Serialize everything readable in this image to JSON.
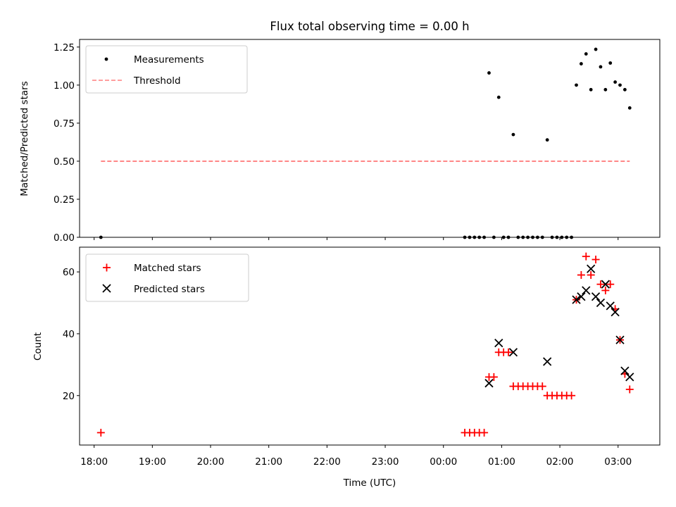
{
  "figure": {
    "title": "Flux total observing time = 0.00 h"
  },
  "chart_data": [
    {
      "type": "scatter",
      "ylabel": "Matched/Predicted stars",
      "xlabel": "",
      "xlim": [
        "17:45",
        "03:43"
      ],
      "ylim": [
        0,
        1.3
      ],
      "yticks": [
        0.0,
        0.25,
        0.5,
        0.75,
        1.0,
        1.25
      ],
      "ytick_labels": [
        "0.00",
        "0.25",
        "0.50",
        "0.75",
        "1.00",
        "1.25"
      ],
      "grid": false,
      "legend_position": "upper left",
      "series": [
        {
          "name": "Measurements",
          "marker": "dot",
          "color": "#000000",
          "points": [
            [
              "18:07",
              0.0
            ],
            [
              "00:22",
              0.0
            ],
            [
              "00:27",
              0.0
            ],
            [
              "00:32",
              0.0
            ],
            [
              "00:37",
              0.0
            ],
            [
              "00:42",
              0.0
            ],
            [
              "00:47",
              1.08
            ],
            [
              "00:52",
              0.0
            ],
            [
              "00:57",
              0.92
            ],
            [
              "01:02",
              0.0
            ],
            [
              "01:07",
              0.0
            ],
            [
              "01:12",
              0.675
            ],
            [
              "01:17",
              0.0
            ],
            [
              "01:22",
              0.0
            ],
            [
              "01:27",
              0.0
            ],
            [
              "01:32",
              0.0
            ],
            [
              "01:37",
              0.0
            ],
            [
              "01:42",
              0.0
            ],
            [
              "01:47",
              0.64
            ],
            [
              "01:52",
              0.0
            ],
            [
              "01:57",
              0.0
            ],
            [
              "02:02",
              0.0
            ],
            [
              "02:07",
              0.0
            ],
            [
              "02:12",
              0.0
            ],
            [
              "02:17",
              1.0
            ],
            [
              "02:22",
              1.14
            ],
            [
              "02:27",
              1.205
            ],
            [
              "02:32",
              0.97
            ],
            [
              "02:37",
              1.235
            ],
            [
              "02:42",
              1.12
            ],
            [
              "02:47",
              0.97
            ],
            [
              "02:52",
              1.145
            ],
            [
              "02:57",
              1.02
            ],
            [
              "03:02",
              1.0
            ],
            [
              "03:07",
              0.97
            ],
            [
              "03:12",
              0.85
            ]
          ]
        },
        {
          "name": "Threshold",
          "line_style": "dashed",
          "color": "#ff7f7f",
          "x": [
            "18:07",
            "03:12"
          ],
          "y": [
            0.5,
            0.5
          ]
        }
      ]
    },
    {
      "type": "scatter",
      "ylabel": "Count",
      "xlabel": "Time (UTC)",
      "xlim": [
        "17:45",
        "03:43"
      ],
      "ylim": [
        4,
        68
      ],
      "yticks": [
        20,
        40,
        60
      ],
      "ytick_labels": [
        "20",
        "40",
        "60"
      ],
      "xticks": [
        "18:00",
        "19:00",
        "20:00",
        "21:00",
        "22:00",
        "23:00",
        "00:00",
        "01:00",
        "02:00",
        "03:00"
      ],
      "grid": false,
      "legend_position": "upper left",
      "series": [
        {
          "name": "Matched stars",
          "marker": "plus",
          "color": "#ff0000",
          "points": [
            [
              "18:07",
              8
            ],
            [
              "00:22",
              8
            ],
            [
              "00:27",
              8
            ],
            [
              "00:32",
              8
            ],
            [
              "00:37",
              8
            ],
            [
              "00:42",
              8
            ],
            [
              "00:47",
              26
            ],
            [
              "00:52",
              26
            ],
            [
              "00:57",
              34
            ],
            [
              "01:02",
              34
            ],
            [
              "01:07",
              34
            ],
            [
              "01:12",
              23
            ],
            [
              "01:17",
              23
            ],
            [
              "01:22",
              23
            ],
            [
              "01:27",
              23
            ],
            [
              "01:32",
              23
            ],
            [
              "01:37",
              23
            ],
            [
              "01:42",
              23
            ],
            [
              "01:47",
              20
            ],
            [
              "01:52",
              20
            ],
            [
              "01:57",
              20
            ],
            [
              "02:02",
              20
            ],
            [
              "02:07",
              20
            ],
            [
              "02:12",
              20
            ],
            [
              "02:17",
              51
            ],
            [
              "02:22",
              59
            ],
            [
              "02:27",
              65
            ],
            [
              "02:32",
              59
            ],
            [
              "02:37",
              64
            ],
            [
              "02:42",
              56
            ],
            [
              "02:47",
              54
            ],
            [
              "02:52",
              56
            ],
            [
              "02:57",
              48
            ],
            [
              "03:02",
              38
            ],
            [
              "03:07",
              27
            ],
            [
              "03:12",
              22
            ]
          ]
        },
        {
          "name": "Predicted stars",
          "marker": "x",
          "color": "#000000",
          "points": [
            [
              "00:47",
              24
            ],
            [
              "00:57",
              37
            ],
            [
              "01:12",
              34
            ],
            [
              "01:47",
              31
            ],
            [
              "02:17",
              51
            ],
            [
              "02:22",
              52
            ],
            [
              "02:27",
              54
            ],
            [
              "02:32",
              61
            ],
            [
              "02:37",
              52
            ],
            [
              "02:42",
              50
            ],
            [
              "02:47",
              56
            ],
            [
              "02:52",
              49
            ],
            [
              "02:57",
              47
            ],
            [
              "03:02",
              38
            ],
            [
              "03:07",
              28
            ],
            [
              "03:12",
              26
            ]
          ]
        }
      ]
    }
  ]
}
